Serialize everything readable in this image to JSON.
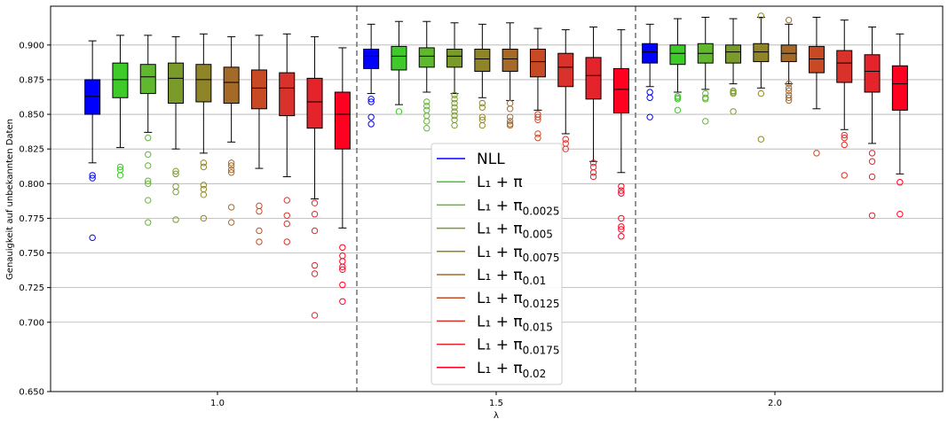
{
  "chart_data": {
    "type": "box",
    "xlabel": "λ",
    "ylabel": "Genauigkeit auf unbekannten Daten",
    "ylim": [
      0.65,
      0.928
    ],
    "yticks": [
      "0.650",
      "0.700",
      "0.725",
      "0.750",
      "0.775",
      "0.800",
      "0.825",
      "0.850",
      "0.875",
      "0.900"
    ],
    "ytick_values": [
      0.65,
      0.7,
      0.725,
      0.75,
      0.775,
      0.8,
      0.825,
      0.85,
      0.875,
      0.9
    ],
    "grid": "horizontal",
    "legend_position": "lower-center",
    "groups": [
      {
        "label": "1.0",
        "value": 1.0
      },
      {
        "label": "1.5",
        "value": 1.5
      },
      {
        "label": "2.0",
        "value": 2.0
      }
    ],
    "series": [
      {
        "name": "NLL",
        "main": "NLL",
        "sub": "",
        "color": "#0000ff"
      },
      {
        "name": "L1 + π",
        "main": "L₁ + π",
        "sub": "",
        "color": "#3ecb29"
      },
      {
        "name": "L1 + π0.0025",
        "main": "L₁ + π",
        "sub": "0.0025",
        "color": "#5fb82e"
      },
      {
        "name": "L1 + π0.005",
        "main": "L₁ + π",
        "sub": "0.005",
        "color": "#7a9a2a"
      },
      {
        "name": "L1 + π0.0075",
        "main": "L₁ + π",
        "sub": "0.0075",
        "color": "#8f8528"
      },
      {
        "name": "L1 + π0.01",
        "main": "L₁ + π",
        "sub": "0.01",
        "color": "#a56a28"
      },
      {
        "name": "L1 + π0.0125",
        "main": "L₁ + π",
        "sub": "0.0125",
        "color": "#c84a25"
      },
      {
        "name": "L1 + π0.015",
        "main": "L₁ + π",
        "sub": "0.015",
        "color": "#d8322a"
      },
      {
        "name": "L1 + π0.0175",
        "main": "L₁ + π",
        "sub": "0.0175",
        "color": "#e4242a"
      },
      {
        "name": "L1 + π0.02",
        "main": "L₁ + π",
        "sub": "0.02",
        "color": "#ff0020"
      }
    ],
    "boxes": [
      [
        {
          "min": 0.815,
          "q1": 0.85,
          "median": 0.863,
          "q3": 0.875,
          "max": 0.903,
          "outliers": [
            0.806,
            0.804,
            0.761
          ]
        },
        {
          "min": 0.826,
          "q1": 0.862,
          "median": 0.875,
          "q3": 0.887,
          "max": 0.907,
          "outliers": [
            0.812,
            0.81,
            0.806
          ]
        },
        {
          "min": 0.837,
          "q1": 0.865,
          "median": 0.877,
          "q3": 0.886,
          "max": 0.907,
          "outliers": [
            0.833,
            0.821,
            0.813,
            0.802,
            0.8,
            0.788,
            0.772
          ]
        },
        {
          "min": 0.825,
          "q1": 0.858,
          "median": 0.876,
          "q3": 0.887,
          "max": 0.906,
          "outliers": [
            0.809,
            0.807,
            0.798,
            0.794,
            0.774
          ]
        },
        {
          "min": 0.822,
          "q1": 0.859,
          "median": 0.875,
          "q3": 0.886,
          "max": 0.908,
          "outliers": [
            0.815,
            0.812,
            0.799,
            0.796,
            0.792,
            0.775
          ]
        },
        {
          "min": 0.83,
          "q1": 0.858,
          "median": 0.873,
          "q3": 0.884,
          "max": 0.906,
          "outliers": [
            0.815,
            0.813,
            0.81,
            0.808,
            0.783,
            0.772
          ]
        },
        {
          "min": 0.811,
          "q1": 0.854,
          "median": 0.869,
          "q3": 0.882,
          "max": 0.907,
          "outliers": [
            0.784,
            0.78,
            0.766,
            0.758
          ]
        },
        {
          "min": 0.805,
          "q1": 0.849,
          "median": 0.869,
          "q3": 0.88,
          "max": 0.908,
          "outliers": [
            0.788,
            0.777,
            0.771,
            0.758
          ]
        },
        {
          "min": 0.789,
          "q1": 0.84,
          "median": 0.859,
          "q3": 0.876,
          "max": 0.906,
          "outliers": [
            0.786,
            0.778,
            0.766,
            0.741,
            0.735,
            0.705
          ]
        },
        {
          "min": 0.768,
          "q1": 0.825,
          "median": 0.85,
          "q3": 0.866,
          "max": 0.898,
          "outliers": [
            0.754,
            0.748,
            0.744,
            0.74,
            0.738,
            0.727,
            0.715
          ]
        }
      ],
      [
        {
          "min": 0.865,
          "q1": 0.883,
          "median": 0.892,
          "q3": 0.897,
          "max": 0.915,
          "outliers": [
            0.861,
            0.859,
            0.848,
            0.843
          ]
        },
        {
          "min": 0.857,
          "q1": 0.882,
          "median": 0.892,
          "q3": 0.899,
          "max": 0.917,
          "outliers": [
            0.852
          ]
        },
        {
          "min": 0.866,
          "q1": 0.884,
          "median": 0.892,
          "q3": 0.898,
          "max": 0.917,
          "outliers": [
            0.859,
            0.856,
            0.853,
            0.849,
            0.845,
            0.84
          ]
        },
        {
          "min": 0.865,
          "q1": 0.884,
          "median": 0.892,
          "q3": 0.897,
          "max": 0.916,
          "outliers": [
            0.864,
            0.861,
            0.858,
            0.855,
            0.852,
            0.849,
            0.846,
            0.842
          ]
        },
        {
          "min": 0.862,
          "q1": 0.881,
          "median": 0.89,
          "q3": 0.897,
          "max": 0.915,
          "outliers": [
            0.858,
            0.855,
            0.848,
            0.846,
            0.842
          ]
        },
        {
          "min": 0.86,
          "q1": 0.881,
          "median": 0.89,
          "q3": 0.897,
          "max": 0.916,
          "outliers": [
            0.858,
            0.854,
            0.848,
            0.845,
            0.843,
            0.842
          ]
        },
        {
          "min": 0.853,
          "q1": 0.877,
          "median": 0.888,
          "q3": 0.897,
          "max": 0.912,
          "outliers": [
            0.85,
            0.848,
            0.846,
            0.836,
            0.833
          ]
        },
        {
          "min": 0.836,
          "q1": 0.87,
          "median": 0.884,
          "q3": 0.894,
          "max": 0.911,
          "outliers": [
            0.832,
            0.829,
            0.825
          ]
        },
        {
          "min": 0.816,
          "q1": 0.861,
          "median": 0.878,
          "q3": 0.891,
          "max": 0.913,
          "outliers": [
            0.815,
            0.812,
            0.808,
            0.805
          ]
        },
        {
          "min": 0.808,
          "q1": 0.851,
          "median": 0.868,
          "q3": 0.883,
          "max": 0.911,
          "outliers": [
            0.798,
            0.795,
            0.793,
            0.775,
            0.769,
            0.767,
            0.762
          ]
        }
      ],
      [
        {
          "min": 0.87,
          "q1": 0.887,
          "median": 0.895,
          "q3": 0.901,
          "max": 0.915,
          "outliers": [
            0.866,
            0.862,
            0.848
          ]
        },
        {
          "min": 0.866,
          "q1": 0.886,
          "median": 0.894,
          "q3": 0.9,
          "max": 0.919,
          "outliers": [
            0.863,
            0.862,
            0.861,
            0.853
          ]
        },
        {
          "min": 0.868,
          "q1": 0.887,
          "median": 0.894,
          "q3": 0.901,
          "max": 0.92,
          "outliers": [
            0.865,
            0.862,
            0.861,
            0.845
          ]
        },
        {
          "min": 0.872,
          "q1": 0.887,
          "median": 0.895,
          "q3": 0.9,
          "max": 0.919,
          "outliers": [
            0.867,
            0.866,
            0.865,
            0.852
          ]
        },
        {
          "min": 0.869,
          "q1": 0.888,
          "median": 0.895,
          "q3": 0.901,
          "max": 0.92,
          "outliers": [
            0.921,
            0.865,
            0.832
          ]
        },
        {
          "min": 0.872,
          "q1": 0.888,
          "median": 0.894,
          "q3": 0.9,
          "max": 0.915,
          "outliers": [
            0.918,
            0.872,
            0.869,
            0.867,
            0.864,
            0.862,
            0.86
          ]
        },
        {
          "min": 0.854,
          "q1": 0.88,
          "median": 0.89,
          "q3": 0.899,
          "max": 0.92,
          "outliers": [
            0.822
          ]
        },
        {
          "min": 0.839,
          "q1": 0.873,
          "median": 0.887,
          "q3": 0.896,
          "max": 0.918,
          "outliers": [
            0.835,
            0.833,
            0.828,
            0.806
          ]
        },
        {
          "min": 0.829,
          "q1": 0.866,
          "median": 0.881,
          "q3": 0.893,
          "max": 0.913,
          "outliers": [
            0.822,
            0.816,
            0.805,
            0.777
          ]
        },
        {
          "min": 0.807,
          "q1": 0.853,
          "median": 0.872,
          "q3": 0.885,
          "max": 0.908,
          "outliers": [
            0.801,
            0.778
          ]
        }
      ]
    ]
  }
}
